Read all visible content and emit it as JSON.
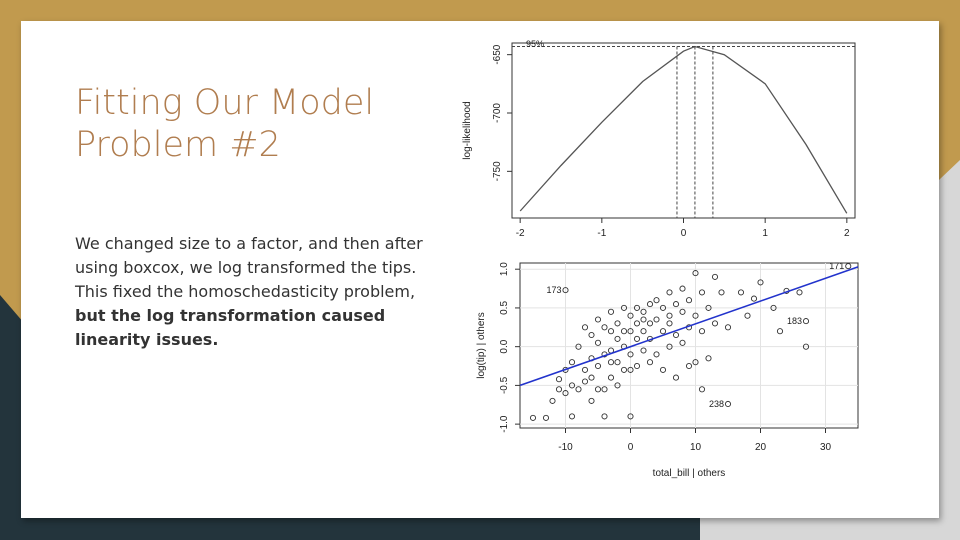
{
  "slide": {
    "title_line1": "Fitting Our Model",
    "title_line2": "Problem #2",
    "body_plain": "We changed size to a factor, and then after using boxcox, we log transformed the tips. This fixed the homoschedasticity problem,",
    "body_bold": "but the log transformation caused linearity issues."
  },
  "colors": {
    "gold": "#c19a4e",
    "navy": "#23343c",
    "title": "#b07d4f",
    "fit_line": "#2233cc"
  },
  "chart_data": [
    {
      "type": "line",
      "title": "",
      "xlabel": "",
      "ylabel": "log-likelihood",
      "xlim": [
        -2.1,
        2.1
      ],
      "ylim": [
        -790,
        -640
      ],
      "x_ticks": [
        "-2",
        "-1",
        "0",
        "1",
        "2"
      ],
      "y_ticks": [
        "-650",
        "-700",
        "-750"
      ],
      "ci_label": "95%",
      "series": [
        {
          "x": [
            -2,
            -1.5,
            -1,
            -0.5,
            0,
            0.14,
            0.5,
            1,
            1.5,
            2
          ],
          "y": [
            -784,
            -745,
            -708,
            -673,
            -647,
            -643,
            -650,
            -675,
            -727,
            -786
          ]
        }
      ],
      "ci_line_y": -643,
      "ci_lambda": [
        -0.08,
        0.14,
        0.36
      ]
    },
    {
      "type": "scatter",
      "title": "",
      "xlabel": "total_bill | others",
      "ylabel": "log(tip) | others",
      "xlim": [
        -17,
        35
      ],
      "ylim": [
        -1.05,
        1.08
      ],
      "x_ticks": [
        "-10",
        "0",
        "10",
        "20",
        "30"
      ],
      "y_ticks": [
        "-1.0",
        "-0.5",
        "0.0",
        "0.5",
        "1.0"
      ],
      "grid": true,
      "fit_line": {
        "x": [
          -17,
          35
        ],
        "y": [
          -0.5,
          1.03
        ]
      },
      "labeled_points": [
        {
          "label": "171",
          "x": 33.5,
          "y": 1.04
        },
        {
          "label": "173",
          "x": -10,
          "y": 0.73
        },
        {
          "label": "183",
          "x": 27,
          "y": 0.33
        },
        {
          "label": "238",
          "x": 15,
          "y": -0.74
        }
      ],
      "points": [
        [
          -15,
          -0.92
        ],
        [
          -13,
          -0.92
        ],
        [
          -12,
          -0.7
        ],
        [
          -11,
          -0.55
        ],
        [
          -11,
          -0.42
        ],
        [
          -10,
          -0.6
        ],
        [
          -10,
          -0.3
        ],
        [
          -9,
          -0.9
        ],
        [
          -9,
          -0.5
        ],
        [
          -9,
          -0.2
        ],
        [
          -8,
          0.0
        ],
        [
          -8,
          -0.55
        ],
        [
          -7,
          0.25
        ],
        [
          -7,
          -0.3
        ],
        [
          -6,
          0.15
        ],
        [
          -6,
          -0.4
        ],
        [
          -6,
          -0.7
        ],
        [
          -5,
          0.35
        ],
        [
          -5,
          0.05
        ],
        [
          -5,
          -0.25
        ],
        [
          -5,
          -0.55
        ],
        [
          -4,
          0.25
        ],
        [
          -4,
          -0.1
        ],
        [
          -4,
          -0.55
        ],
        [
          -4,
          -0.9
        ],
        [
          -3,
          0.45
        ],
        [
          -3,
          0.2
        ],
        [
          -3,
          -0.2
        ],
        [
          -3,
          -0.4
        ],
        [
          -2,
          0.3
        ],
        [
          -2,
          0.1
        ],
        [
          -2,
          -0.2
        ],
        [
          -2,
          -0.5
        ],
        [
          -1,
          0.5
        ],
        [
          -1,
          0.2
        ],
        [
          -1,
          0.0
        ],
        [
          -1,
          -0.3
        ],
        [
          0,
          0.4
        ],
        [
          0,
          0.2
        ],
        [
          0,
          -0.1
        ],
        [
          0,
          -0.3
        ],
        [
          0,
          -0.9
        ],
        [
          1,
          0.5
        ],
        [
          1,
          0.3
        ],
        [
          1,
          0.1
        ],
        [
          1,
          -0.25
        ],
        [
          2,
          0.45
        ],
        [
          2,
          0.2
        ],
        [
          2,
          -0.05
        ],
        [
          3,
          0.55
        ],
        [
          3,
          0.3
        ],
        [
          3,
          0.1
        ],
        [
          3,
          -0.2
        ],
        [
          4,
          0.35
        ],
        [
          4,
          0.6
        ],
        [
          4,
          -0.1
        ],
        [
          5,
          0.2
        ],
        [
          5,
          0.5
        ],
        [
          5,
          -0.3
        ],
        [
          6,
          0.7
        ],
        [
          6,
          0.3
        ],
        [
          6,
          0.0
        ],
        [
          7,
          0.55
        ],
        [
          7,
          0.15
        ],
        [
          7,
          -0.4
        ],
        [
          8,
          0.45
        ],
        [
          8,
          0.05
        ],
        [
          9,
          0.6
        ],
        [
          9,
          0.25
        ],
        [
          9,
          -0.25
        ],
        [
          10,
          0.95
        ],
        [
          10,
          0.4
        ],
        [
          10,
          -0.2
        ],
        [
          11,
          0.7
        ],
        [
          11,
          0.2
        ],
        [
          12,
          0.5
        ],
        [
          12,
          -0.15
        ],
        [
          13,
          0.9
        ],
        [
          13,
          0.3
        ],
        [
          14,
          0.7
        ],
        [
          15,
          0.25
        ],
        [
          17,
          0.7
        ],
        [
          18,
          0.4
        ],
        [
          19,
          0.62
        ],
        [
          20,
          0.83
        ],
        [
          22,
          0.5
        ],
        [
          23,
          0.2
        ],
        [
          26,
          0.7
        ],
        [
          27,
          0.0
        ],
        [
          24,
          0.72
        ],
        [
          -7,
          -0.45
        ],
        [
          -6,
          -0.15
        ],
        [
          -3,
          -0.05
        ],
        [
          2,
          0.35
        ],
        [
          6,
          0.4
        ],
        [
          8,
          0.75
        ],
        [
          11,
          -0.55
        ]
      ]
    }
  ]
}
